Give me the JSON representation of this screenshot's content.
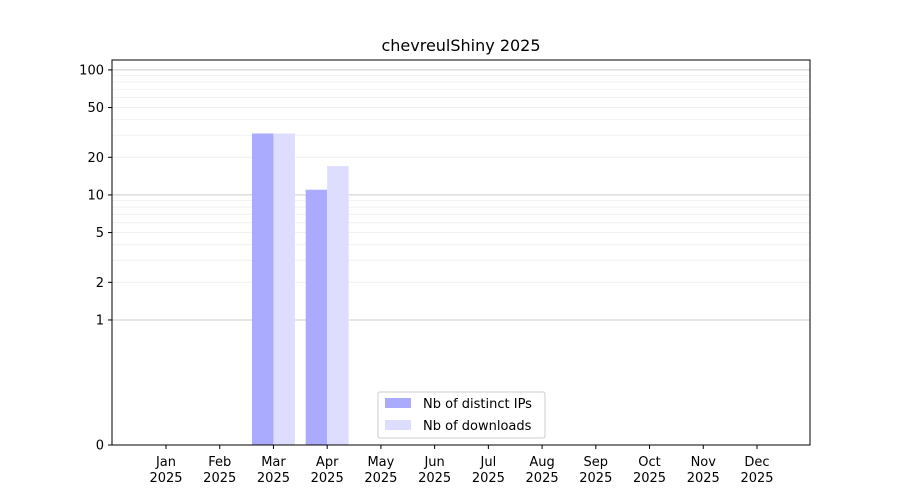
{
  "chart_data": {
    "type": "bar",
    "title": "chevreulShiny 2025",
    "xlabel": "",
    "ylabel": "",
    "y_scale": "symlog",
    "ylim": [
      0,
      120
    ],
    "y_ticks": [
      0,
      1,
      2,
      5,
      10,
      20,
      50,
      100
    ],
    "y_tick_labels": [
      "0",
      "1",
      "2",
      "5",
      "10",
      "20",
      "50",
      "100"
    ],
    "grid": true,
    "legend_position": "bottom-center",
    "categories": [
      [
        "Jan",
        "2025"
      ],
      [
        "Feb",
        "2025"
      ],
      [
        "Mar",
        "2025"
      ],
      [
        "Apr",
        "2025"
      ],
      [
        "May",
        "2025"
      ],
      [
        "Jun",
        "2025"
      ],
      [
        "Jul",
        "2025"
      ],
      [
        "Aug",
        "2025"
      ],
      [
        "Sep",
        "2025"
      ],
      [
        "Oct",
        "2025"
      ],
      [
        "Nov",
        "2025"
      ],
      [
        "Dec",
        "2025"
      ]
    ],
    "series": [
      {
        "name": "Nb of distinct IPs",
        "color": "#aaaaff",
        "values": [
          0,
          0,
          31,
          11,
          0,
          0,
          0,
          0,
          0,
          0,
          0,
          0
        ]
      },
      {
        "name": "Nb of downloads",
        "color": "#ddddff",
        "values": [
          0,
          0,
          31,
          17,
          0,
          0,
          0,
          0,
          0,
          0,
          0,
          0
        ]
      }
    ]
  }
}
